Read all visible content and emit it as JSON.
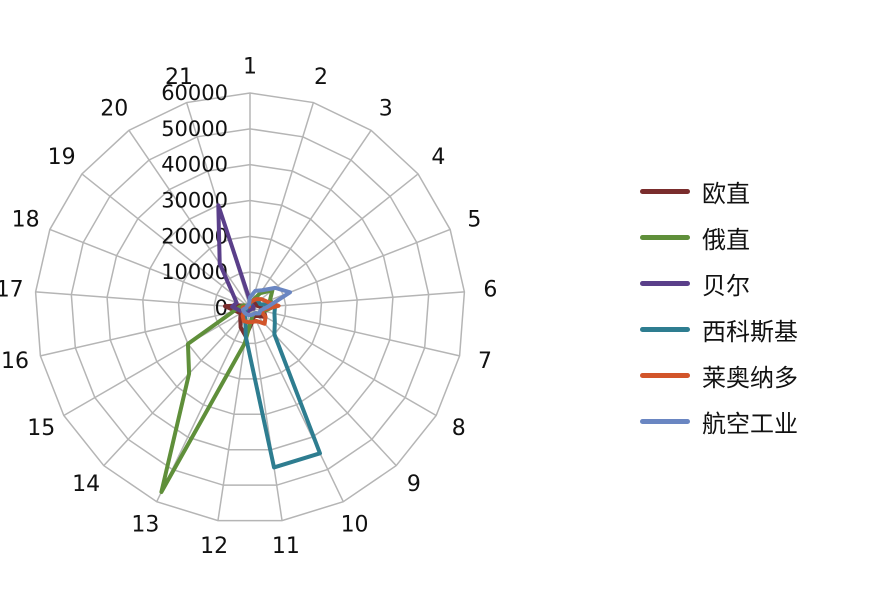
{
  "chart_data": {
    "type": "radar",
    "categories": [
      "1",
      "2",
      "3",
      "4",
      "5",
      "6",
      "7",
      "8",
      "9",
      "10",
      "11",
      "12",
      "13",
      "14",
      "15",
      "16",
      "17",
      "18",
      "19",
      "20",
      "21"
    ],
    "radial_ticks": [
      "0",
      "10000",
      "20000",
      "30000",
      "40000",
      "50000",
      "60000"
    ],
    "rlim": [
      0,
      60000
    ],
    "grid": true,
    "legend_position": "right",
    "series": [
      {
        "name": "欧直",
        "color": "#7a2d2d",
        "values": [
          1500,
          1000,
          1500,
          2000,
          2000,
          3000,
          4000,
          5000,
          3000,
          2500,
          4000,
          8000,
          6000,
          4000,
          3000,
          4000,
          7000,
          2000,
          1000,
          500,
          1000
        ]
      },
      {
        "name": "俄直",
        "color": "#5f8f3a",
        "values": [
          1000,
          2000,
          5000,
          8000,
          6000,
          7000,
          4000,
          3000,
          2000,
          2000,
          3000,
          10000,
          57000,
          25000,
          20000,
          5000,
          3000,
          2000,
          1000,
          500,
          1000
        ]
      },
      {
        "name": "贝尔",
        "color": "#5a3f8a",
        "values": [
          2000,
          1000,
          1000,
          1000,
          1000,
          1000,
          1000,
          500,
          500,
          500,
          500,
          500,
          1000,
          1000,
          2000,
          3000,
          5000,
          4000,
          6000,
          15000,
          30000
        ]
      },
      {
        "name": "西科斯基",
        "color": "#2e7d90",
        "values": [
          1000,
          2000,
          3000,
          3000,
          3000,
          7000,
          7000,
          8000,
          10000,
          45000,
          45000,
          8000,
          3000,
          2000,
          2000,
          1000,
          1000,
          1000,
          500,
          500,
          1000
        ]
      },
      {
        "name": "莱奥纳多",
        "color": "#d2552a",
        "values": [
          1500,
          2000,
          3000,
          4000,
          5000,
          8000,
          3000,
          5000,
          6000,
          4000,
          4000,
          4000,
          4000,
          3000,
          2000,
          2000,
          2000,
          1000,
          1000,
          500,
          1000
        ]
      },
      {
        "name": "航空工业",
        "color": "#6a86c2",
        "values": [
          3000,
          5000,
          6000,
          9000,
          12000,
          5000,
          3000,
          3000,
          2000,
          2000,
          2000,
          2000,
          2000,
          2000,
          2000,
          2000,
          1000,
          1000,
          1000,
          1000,
          1000
        ]
      }
    ]
  }
}
